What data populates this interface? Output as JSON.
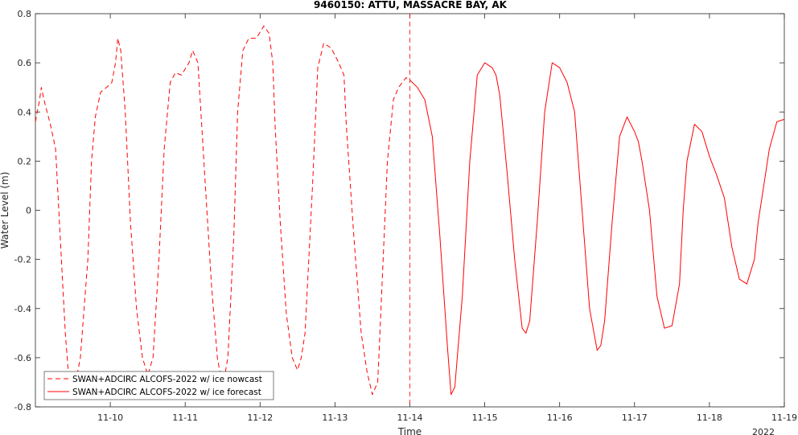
{
  "chart_data": {
    "type": "line",
    "title": "9460150: ATTU, MASSACRE BAY, AK",
    "xlabel": "Time",
    "ylabel": "Water Level (m)",
    "x_year_label": "2022",
    "xlim": [
      0,
      10
    ],
    "ylim": [
      -0.8,
      0.8
    ],
    "x_ticks": [
      1,
      2,
      3,
      4,
      5,
      6,
      7,
      8,
      9,
      10
    ],
    "x_tick_labels": [
      "11-10",
      "11-11",
      "11-12",
      "11-13",
      "11-14",
      "11-15",
      "11-16",
      "11-17",
      "11-18",
      "11-19"
    ],
    "y_ticks": [
      -0.8,
      -0.6,
      -0.4,
      -0.2,
      0,
      0.2,
      0.4,
      0.6,
      0.8
    ],
    "y_tick_labels": [
      "-0.8",
      "-0.6",
      "-0.4",
      "-0.2",
      "0",
      "0.2",
      "0.4",
      "0.6",
      "0.8"
    ],
    "grid": false,
    "legend_position": "bottom-left",
    "nowcast_forecast_divider_x": 5.0,
    "series": [
      {
        "name": "SWAN+ADCIRC ALCOFS-2022 w/ ice nowcast",
        "color": "#ff0000",
        "style": "dashed",
        "x": [
          0,
          0.05,
          0.08,
          0.13,
          0.2,
          0.27,
          0.33,
          0.4,
          0.45,
          0.5,
          0.6,
          0.7,
          0.75,
          0.8,
          0.87,
          0.95,
          1.02,
          1.07,
          1.1,
          1.14,
          1.2,
          1.27,
          1.35,
          1.43,
          1.5,
          1.57,
          1.65,
          1.72,
          1.8,
          1.87,
          1.95,
          2.05,
          2.1,
          2.17,
          2.2,
          2.27,
          2.35,
          2.43,
          2.5,
          2.57,
          2.65,
          2.7,
          2.77,
          2.85,
          2.95,
          3.05,
          3.12,
          3.17,
          3.2,
          3.27,
          3.35,
          3.43,
          3.5,
          3.55,
          3.6,
          3.7,
          3.77,
          3.85,
          3.95,
          4.05,
          4.12,
          4.15,
          4.25,
          4.35,
          4.43,
          4.5,
          4.57,
          4.6,
          4.7,
          4.78,
          4.85,
          4.95,
          5.0
        ],
        "y": [
          0.36,
          0.44,
          0.5,
          0.43,
          0.35,
          0.25,
          -0.1,
          -0.5,
          -0.7,
          -0.76,
          -0.6,
          -0.2,
          0.2,
          0.38,
          0.48,
          0.5,
          0.52,
          0.6,
          0.7,
          0.65,
          0.4,
          -0.05,
          -0.4,
          -0.6,
          -0.67,
          -0.6,
          -0.2,
          0.25,
          0.52,
          0.56,
          0.55,
          0.6,
          0.65,
          0.6,
          0.45,
          0.1,
          -0.3,
          -0.6,
          -0.72,
          -0.6,
          -0.1,
          0.4,
          0.65,
          0.7,
          0.7,
          0.75,
          0.72,
          0.6,
          0.35,
          -0.05,
          -0.42,
          -0.6,
          -0.65,
          -0.6,
          -0.5,
          0.1,
          0.58,
          0.68,
          0.66,
          0.6,
          0.55,
          0.35,
          -0.1,
          -0.5,
          -0.66,
          -0.75,
          -0.7,
          -0.5,
          0.2,
          0.45,
          0.5,
          0.54,
          0.53
        ]
      },
      {
        "name": "SWAN+ADCIRC ALCOFS-2022 w/ ice forecast",
        "color": "#ff0000",
        "style": "solid",
        "x": [
          5.0,
          5.1,
          5.2,
          5.3,
          5.4,
          5.5,
          5.55,
          5.6,
          5.7,
          5.8,
          5.9,
          6.0,
          6.1,
          6.15,
          6.2,
          6.3,
          6.4,
          6.5,
          6.55,
          6.6,
          6.7,
          6.8,
          6.9,
          7.0,
          7.1,
          7.2,
          7.3,
          7.4,
          7.5,
          7.55,
          7.6,
          7.7,
          7.8,
          7.9,
          8.0,
          8.05,
          8.1,
          8.2,
          8.3,
          8.4,
          8.5,
          8.6,
          8.65,
          8.7,
          8.8,
          8.9,
          9.0,
          9.1,
          9.2,
          9.3,
          9.4,
          9.5,
          9.6,
          9.65,
          9.7,
          9.8,
          9.9,
          10.0
        ],
        "y": [
          0.53,
          0.5,
          0.45,
          0.3,
          -0.1,
          -0.55,
          -0.75,
          -0.72,
          -0.35,
          0.2,
          0.55,
          0.6,
          0.58,
          0.55,
          0.47,
          0.15,
          -0.2,
          -0.48,
          -0.5,
          -0.45,
          -0.05,
          0.4,
          0.6,
          0.58,
          0.52,
          0.4,
          0.0,
          -0.4,
          -0.57,
          -0.55,
          -0.45,
          -0.05,
          0.3,
          0.38,
          0.32,
          0.28,
          0.2,
          0.0,
          -0.35,
          -0.48,
          -0.47,
          -0.3,
          0.0,
          0.2,
          0.35,
          0.32,
          0.22,
          0.14,
          0.05,
          -0.15,
          -0.28,
          -0.3,
          -0.2,
          -0.05,
          0.05,
          0.25,
          0.36,
          0.37
        ]
      }
    ]
  }
}
